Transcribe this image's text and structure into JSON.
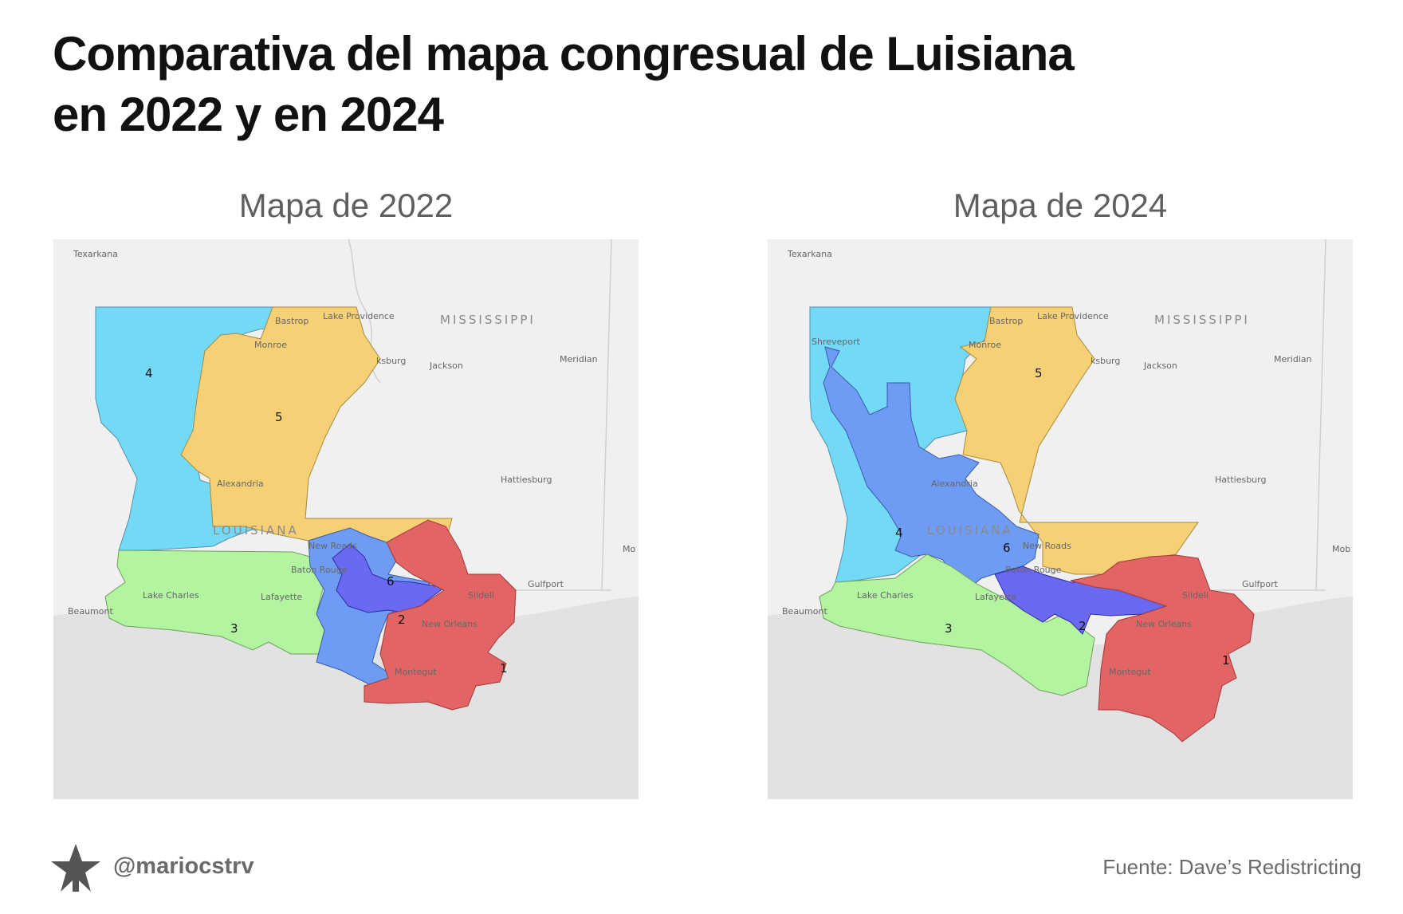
{
  "title": {
    "line1": "Comparativa del mapa congresual de Luisiana",
    "line2": "en 2022 y en 2024"
  },
  "maps": {
    "left": {
      "title": "Mapa de 2022",
      "state_labels": {
        "mississippi": "MISSISSIPPI",
        "louisiana": "LOUISIANA"
      },
      "cities": {
        "texarkana": "Texarkana",
        "bastrop": "Bastrop",
        "lake_providence": "Lake Providence",
        "monroe": "Monroe",
        "vicksburg": "ksburg",
        "jackson": "Jackson",
        "meridian": "Meridian",
        "alexandria": "Alexandria",
        "hattiesburg": "Hattiesburg",
        "new_roads": "New Roads",
        "baton_rouge": "Baton Rouge",
        "gulfport": "Gulfport",
        "slidell": "Slidell",
        "lake_charles": "Lake Charles",
        "lafayette": "Lafayette",
        "beaumont": "Beaumont",
        "new_orleans": "New Orleans",
        "montegut": "Montegut",
        "mobile": "Mo"
      },
      "districts": {
        "d1": "1",
        "d2": "2",
        "d3": "3",
        "d4": "4",
        "d5": "5",
        "d6": "6"
      }
    },
    "right": {
      "title": "Mapa de 2024",
      "state_labels": {
        "mississippi": "MISSISSIPPI",
        "louisiana": "LOUISIANA"
      },
      "cities": {
        "texarkana": "Texarkana",
        "shreveport": "Shreveport",
        "bastrop": "Bastrop",
        "lake_providence": "Lake Providence",
        "monroe": "Monroe",
        "vicksburg": "ksburg",
        "jackson": "Jackson",
        "meridian": "Meridian",
        "alexandria": "Alexandria",
        "hattiesburg": "Hattiesburg",
        "new_roads": "New Roads",
        "baton_rouge": "Baton Rouge",
        "gulfport": "Gulfport",
        "slidell": "Slidell",
        "lake_charles": "Lake Charles",
        "lafayette": "Lafayette",
        "beaumont": "Beaumont",
        "new_orleans": "New Orleans",
        "montegut": "Montegut",
        "mobile": "Mob"
      },
      "districts": {
        "d1": "1",
        "d2": "2",
        "d3": "3",
        "d4": "4",
        "d5": "5",
        "d6": "6"
      }
    }
  },
  "colors": {
    "district_1": "#e36464",
    "district_2": "#6b68f2",
    "district_3": "#b3f4a0",
    "district_4": "#72d9f6",
    "district_5": "#f6d074",
    "district_6": "#6e9cf4",
    "land": "#f0f0f0",
    "water": "#e2e2e2"
  },
  "footer": {
    "logo_icon": "star-icon",
    "handle": "@mariocstrv",
    "source": "Fuente: Dave’s Redistricting"
  }
}
